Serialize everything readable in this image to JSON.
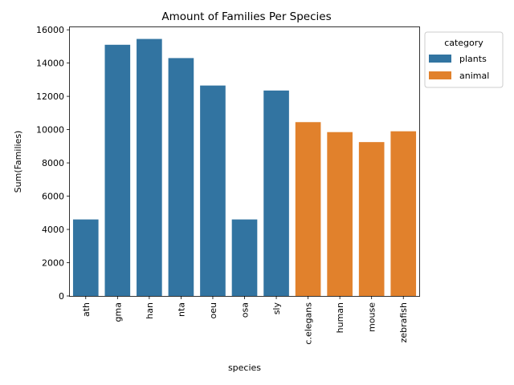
{
  "chart_data": {
    "type": "bar",
    "title": "Amount of Families Per Species",
    "xlabel": "species",
    "ylabel": "Sum(Families)",
    "ylim": [
      0,
      16200
    ],
    "yticks": [
      0,
      2000,
      4000,
      6000,
      8000,
      10000,
      12000,
      14000,
      16000
    ],
    "ytick_labels": [
      "0",
      "2000",
      "4000",
      "6000",
      "8000",
      "10000",
      "12000",
      "14000",
      "16000"
    ],
    "categories": [
      "ath",
      "gma",
      "han",
      "nta",
      "oeu",
      "osa",
      "sly",
      "c.elegans",
      "human",
      "mouse",
      "zebrafish"
    ],
    "values": [
      4600,
      15100,
      15450,
      14300,
      12650,
      4600,
      12350,
      10450,
      9850,
      9250,
      9900
    ],
    "category_group": [
      "plants",
      "plants",
      "plants",
      "plants",
      "plants",
      "plants",
      "plants",
      "animal",
      "animal",
      "animal",
      "animal"
    ],
    "legend": {
      "title": "category",
      "placement": "top-right-outside",
      "entries": [
        {
          "name": "plants",
          "color": "#3274a1"
        },
        {
          "name": "animal",
          "color": "#e1812c"
        }
      ]
    },
    "grid": false
  }
}
